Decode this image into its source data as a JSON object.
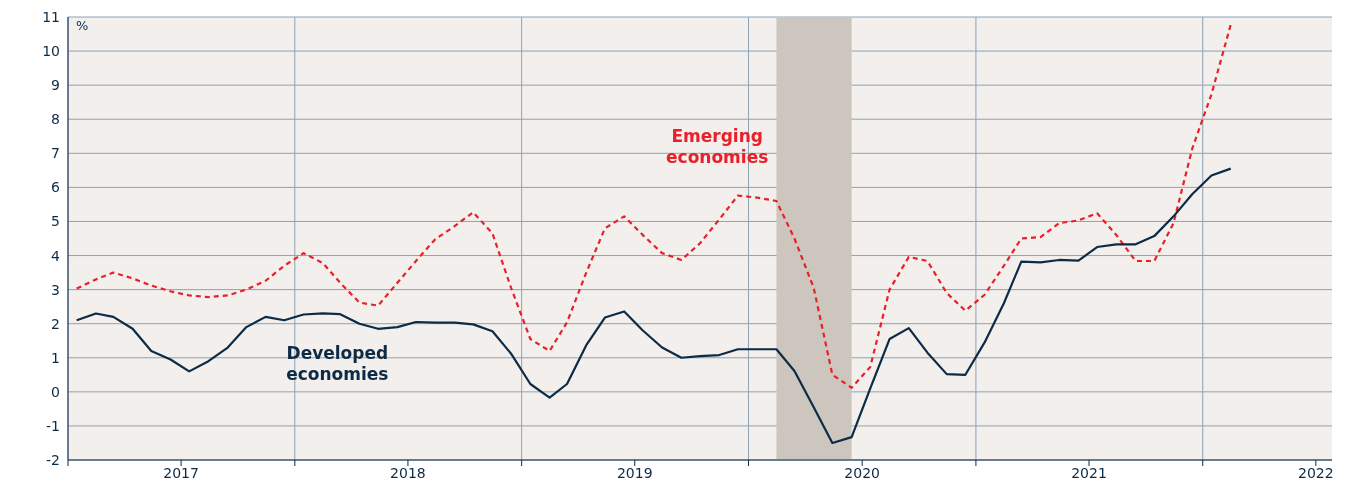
{
  "chart_data": {
    "type": "line",
    "ylabel": "%",
    "x": [
      "2017-01-15",
      "2017-02-15",
      "2017-03-15",
      "2017-04-15",
      "2017-05-15",
      "2017-06-15",
      "2017-07-15",
      "2017-08-15",
      "2017-09-15",
      "2017-10-15",
      "2017-11-15",
      "2017-12-15",
      "2018-01-15",
      "2018-02-15",
      "2018-03-15",
      "2018-04-15",
      "2018-05-15",
      "2018-06-15",
      "2018-07-15",
      "2018-08-15",
      "2018-09-15",
      "2018-10-15",
      "2018-11-15",
      "2018-12-15",
      "2019-01-15",
      "2019-02-15",
      "2019-03-15",
      "2019-04-15",
      "2019-05-15",
      "2019-06-15",
      "2019-07-15",
      "2019-08-15",
      "2019-09-15",
      "2019-10-15",
      "2019-11-15",
      "2019-12-15",
      "2020-01-15",
      "2020-02-15",
      "2020-03-15",
      "2020-04-15",
      "2020-05-15",
      "2020-06-15",
      "2020-07-15",
      "2020-08-15",
      "2020-09-15",
      "2020-10-15",
      "2020-11-15",
      "2020-12-15",
      "2021-01-15",
      "2021-02-15",
      "2021-03-15",
      "2021-04-15",
      "2021-05-15",
      "2021-06-15",
      "2021-07-15",
      "2021-08-15",
      "2021-09-15",
      "2021-10-15",
      "2021-11-15",
      "2021-12-15",
      "2022-01-15",
      "2022-02-15"
    ],
    "series": [
      {
        "name": "Emerging economies",
        "color": "#e8202a",
        "line_style": "dashed",
        "values": [
          3.03,
          3.3,
          3.5,
          3.33,
          3.12,
          2.95,
          2.83,
          2.78,
          2.83,
          3.0,
          3.26,
          3.7,
          4.07,
          3.78,
          3.2,
          2.62,
          2.53,
          3.2,
          3.84,
          4.48,
          4.86,
          5.27,
          4.65,
          3.05,
          1.55,
          1.2,
          2.04,
          3.5,
          4.8,
          5.15,
          4.6,
          4.07,
          3.87,
          4.36,
          5.06,
          5.76,
          5.7,
          5.6,
          4.5,
          3.05,
          0.5,
          0.12,
          0.73,
          3.0,
          3.96,
          3.84,
          2.9,
          2.38,
          2.85,
          3.7,
          4.5,
          4.54,
          4.95,
          5.03,
          5.24,
          4.6,
          3.84,
          3.84,
          4.95,
          7.13,
          8.73,
          10.77
        ]
      },
      {
        "name": "Developed economies",
        "color": "#0d2b45",
        "line_style": "solid",
        "values": [
          2.1,
          2.3,
          2.2,
          1.85,
          1.2,
          0.95,
          0.6,
          0.9,
          1.3,
          1.9,
          2.2,
          2.1,
          2.27,
          2.3,
          2.28,
          2.0,
          1.85,
          1.9,
          2.05,
          2.03,
          2.03,
          1.98,
          1.78,
          1.12,
          0.23,
          -0.17,
          0.23,
          1.37,
          2.18,
          2.36,
          1.8,
          1.3,
          1.0,
          1.05,
          1.08,
          1.25,
          1.25,
          1.25,
          0.61,
          -0.45,
          -1.5,
          -1.33,
          0.1,
          1.55,
          1.87,
          1.15,
          0.52,
          0.5,
          1.45,
          2.6,
          3.82,
          3.8,
          3.87,
          3.85,
          4.25,
          4.33,
          4.33,
          4.57,
          5.15,
          5.8,
          6.35,
          6.55
        ]
      }
    ],
    "xlim": [
      "2017-01-01",
      "2022-07-28"
    ],
    "xticks": [
      {
        "value": "2017-01-01",
        "label": null
      },
      {
        "value": "2017-07-02",
        "label": "2017"
      },
      {
        "value": "2018-01-01",
        "label": null
      },
      {
        "value": "2018-07-02",
        "label": "2018"
      },
      {
        "value": "2019-01-01",
        "label": null
      },
      {
        "value": "2019-07-02",
        "label": "2019"
      },
      {
        "value": "2020-01-01",
        "label": null
      },
      {
        "value": "2020-07-02",
        "label": "2020"
      },
      {
        "value": "2021-01-01",
        "label": null
      },
      {
        "value": "2021-07-02",
        "label": "2021"
      },
      {
        "value": "2022-01-01",
        "label": null
      },
      {
        "value": "2022-07-02",
        "label": "2022"
      }
    ],
    "ylim": [
      -2,
      11
    ],
    "yticks": [
      -2,
      -1,
      0,
      1,
      2,
      3,
      4,
      5,
      6,
      7,
      8,
      9,
      10,
      11
    ],
    "bands": [
      {
        "axis": "x",
        "from": "2020-02-15",
        "to": "2020-06-15",
        "color": "#cdc6bf"
      }
    ],
    "grid": true,
    "legend": false,
    "marker": "none"
  }
}
